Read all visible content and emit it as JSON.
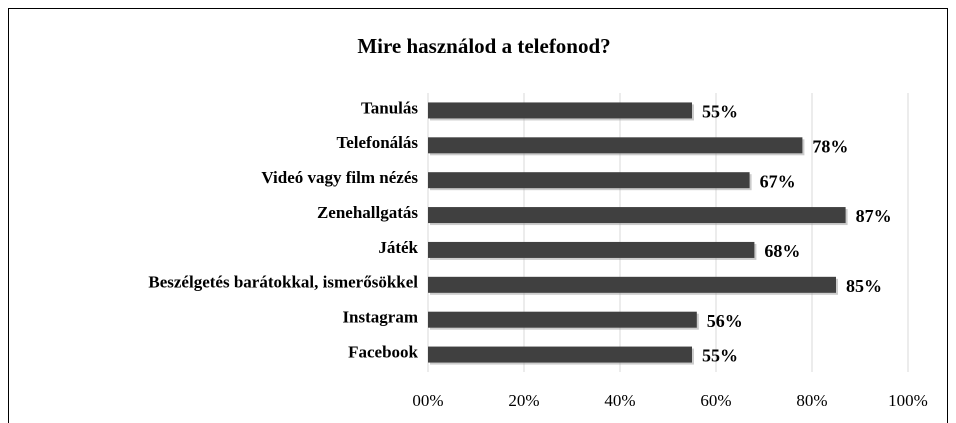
{
  "chart_data": {
    "type": "bar",
    "orientation": "horizontal",
    "title": "Mire használod a telefonod?",
    "categories": [
      "Tanulás",
      "Telefonálás",
      "Videó vagy film nézés",
      "Zenehallgatás",
      "Játék",
      "Beszélgetés barátokkal, ismerősökkel",
      "Instagram",
      "Facebook"
    ],
    "values": [
      55,
      78,
      67,
      87,
      68,
      85,
      56,
      55
    ],
    "value_labels": [
      "55%",
      "78%",
      "67%",
      "87%",
      "68%",
      "85%",
      "56%",
      "55%"
    ],
    "color": "#404040",
    "xlim": [
      0,
      100
    ],
    "xticks": [
      {
        "value": 0,
        "label": "00%"
      },
      {
        "value": 20,
        "label": "20%"
      },
      {
        "value": 40,
        "label": "40%"
      },
      {
        "value": 60,
        "label": "60%"
      },
      {
        "value": 80,
        "label": "80%"
      },
      {
        "value": 100,
        "label": "100%"
      }
    ],
    "grid": true
  }
}
